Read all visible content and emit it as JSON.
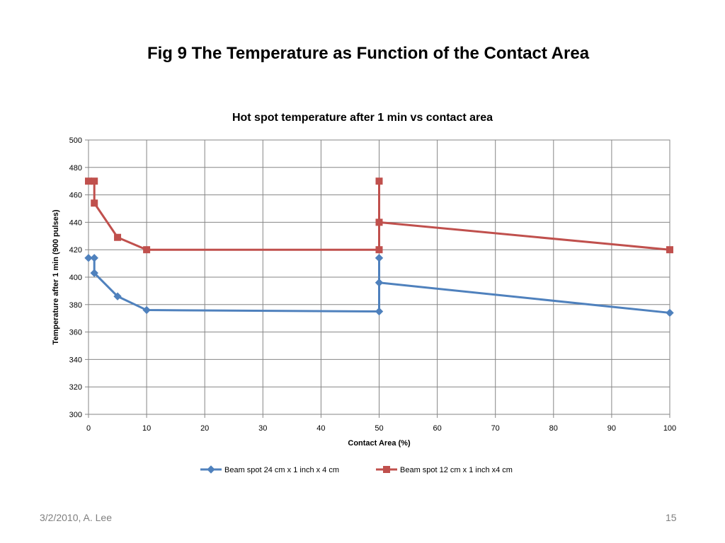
{
  "slide": {
    "title": "Fig 9 The Temperature as Function of the Contact Area",
    "footer_left": "3/2/2010, A. Lee",
    "page_number": "15"
  },
  "chart_data": {
    "type": "line",
    "title": "Hot spot temperature after 1 min vs contact area",
    "xlabel": "Contact Area (%)",
    "ylabel": "Temperature after 1 min (900 pulses)",
    "xlim": [
      0,
      100
    ],
    "ylim": [
      300,
      500
    ],
    "xticks": [
      0,
      10,
      20,
      30,
      40,
      50,
      60,
      70,
      80,
      90,
      100
    ],
    "yticks": [
      300,
      320,
      340,
      360,
      380,
      400,
      420,
      440,
      460,
      480,
      500
    ],
    "grid": true,
    "legend_position": "bottom",
    "series": [
      {
        "name": "Beam spot 24 cm x 1 inch x 4 cm",
        "color": "#4f81bd",
        "marker": "diamond",
        "x": [
          0,
          1,
          1,
          5,
          10,
          50,
          50,
          50,
          100
        ],
        "y": [
          414,
          414,
          403,
          386,
          376,
          375,
          414,
          396,
          374
        ]
      },
      {
        "name": "Beam spot 12 cm x 1 inch x4 cm",
        "color": "#c0504d",
        "marker": "square",
        "x": [
          0,
          1,
          1,
          5,
          10,
          50,
          50,
          50,
          100
        ],
        "y": [
          470,
          470,
          454,
          429,
          420,
          420,
          470,
          440,
          420
        ]
      }
    ]
  }
}
